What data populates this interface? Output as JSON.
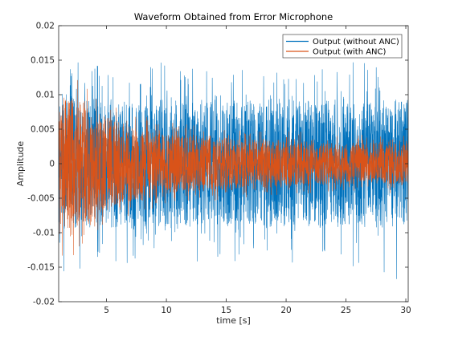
{
  "chart_data": {
    "type": "line",
    "title": "Waveform Obtained from Error Microphone",
    "xlabel": "time [s]",
    "ylabel": "Amplitude",
    "xlim": [
      1,
      30.2
    ],
    "ylim": [
      -0.02,
      0.02
    ],
    "x_ticks": [
      5,
      10,
      15,
      20,
      25,
      30
    ],
    "x_tick_labels": [
      "5",
      "10",
      "15",
      "20",
      "25",
      "30"
    ],
    "y_ticks": [
      -0.02,
      -0.015,
      -0.01,
      -0.005,
      0,
      0.005,
      0.01,
      0.015,
      0.02
    ],
    "y_tick_labels": [
      "-0.02",
      "-0.015",
      "-0.01",
      "-0.005",
      "0",
      "0.005",
      "0.01",
      "0.015",
      "0.02"
    ],
    "grid": false,
    "legend_position": "top-right",
    "series": [
      {
        "name": "Output (without ANC)",
        "color": "#0072BD",
        "envelope_time": [
          1,
          2,
          3,
          5,
          10,
          15,
          20,
          25,
          30.2
        ],
        "envelope_typical": [
          0.0095,
          0.0095,
          0.0093,
          0.0093,
          0.0092,
          0.0092,
          0.0092,
          0.0092,
          0.0092
        ],
        "envelope_peak": [
          0.0175,
          0.0165,
          0.015,
          0.015,
          0.0145,
          0.014,
          0.014,
          0.0145,
          0.017
        ]
      },
      {
        "name": "Output (with ANC)",
        "color": "#D95319",
        "envelope_time": [
          1,
          2,
          3,
          5,
          8,
          10,
          15,
          20,
          25,
          30.2
        ],
        "envelope_typical": [
          0.0105,
          0.0098,
          0.0088,
          0.0068,
          0.0052,
          0.0045,
          0.0038,
          0.0033,
          0.003,
          0.003
        ],
        "envelope_peak": [
          0.0155,
          0.0135,
          0.012,
          0.009,
          0.0072,
          0.0062,
          0.0052,
          0.0046,
          0.0042,
          0.0042
        ]
      }
    ]
  }
}
